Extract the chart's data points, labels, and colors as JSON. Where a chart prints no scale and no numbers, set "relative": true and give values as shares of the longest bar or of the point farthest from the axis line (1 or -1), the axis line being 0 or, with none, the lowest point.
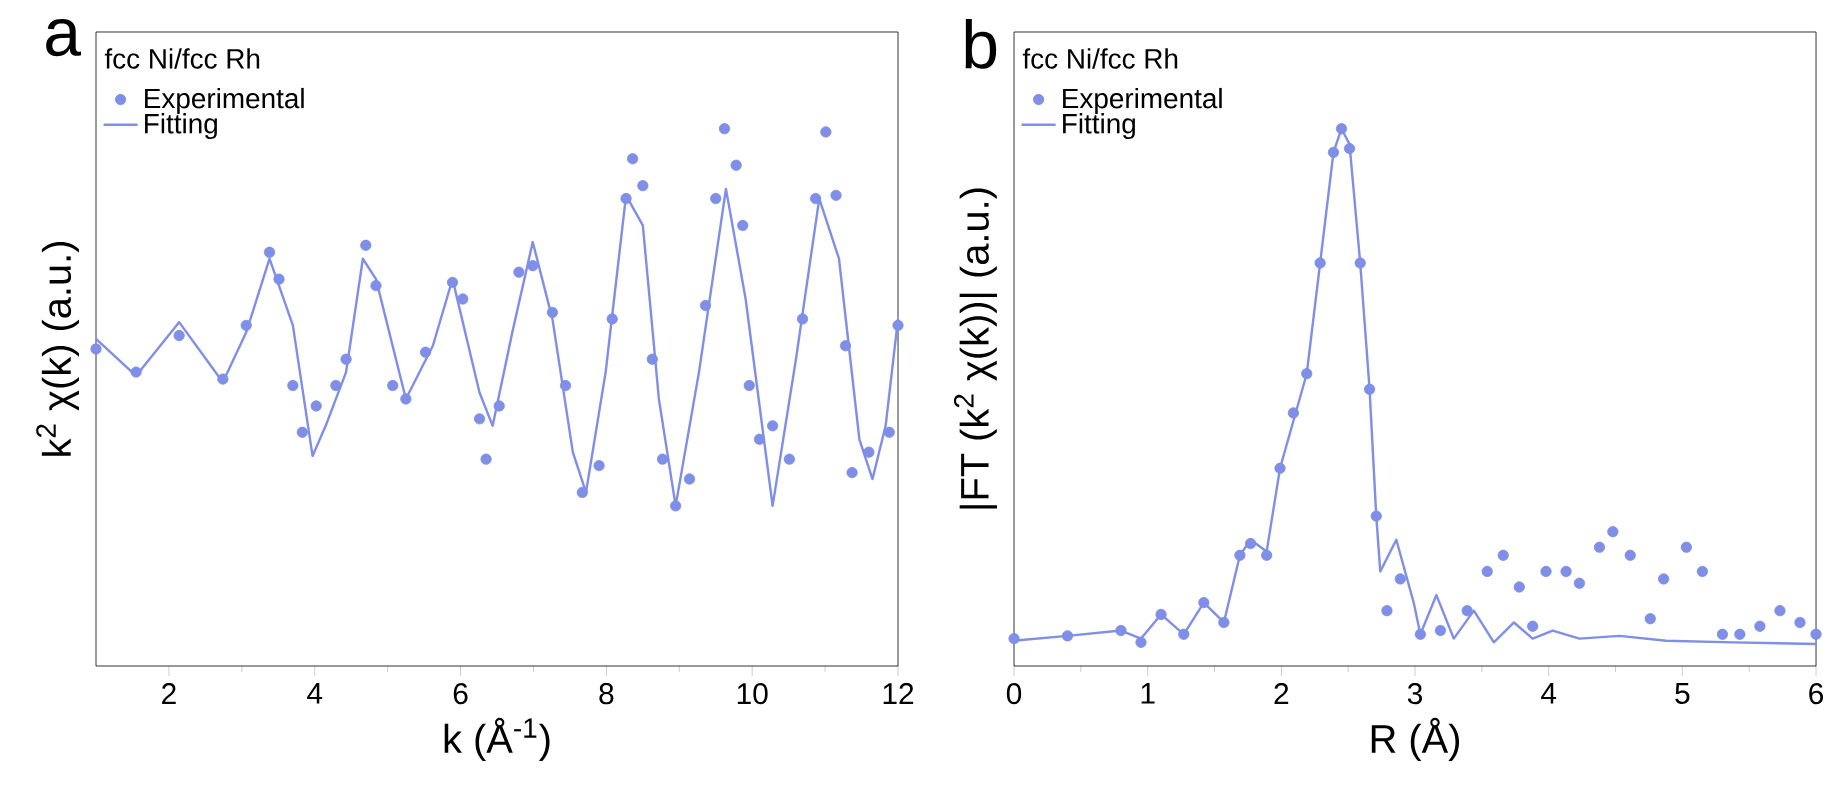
{
  "chart_data": [
    {
      "type": "scatter",
      "title": "a",
      "legend_title": "fcc Ni/fcc Rh",
      "xlabel": "k (Å$^{-1}$)",
      "ylabel": "k$^{2}$ χ(k) (a.u.)",
      "relative": true,
      "xlim": [
        1,
        12
      ],
      "xticks": [
        2,
        4,
        6,
        8,
        10,
        12
      ],
      "tick_labels": "x",
      "legend": "top left",
      "grid": false,
      "series": [
        {
          "name": "Experimental",
          "marker": "circle",
          "color": "#7f8ee6",
          "x": [
            1.0,
            1.55,
            2.14,
            2.74,
            3.06,
            3.38,
            3.51,
            3.7,
            3.83,
            4.02,
            4.29,
            4.43,
            4.7,
            4.84,
            5.07,
            5.25,
            5.52,
            5.89,
            6.03,
            6.26,
            6.35,
            6.53,
            6.8,
            6.99,
            7.26,
            7.44,
            7.67,
            7.9,
            8.08,
            8.27,
            8.36,
            8.5,
            8.63,
            8.77,
            8.95,
            9.14,
            9.36,
            9.5,
            9.62,
            9.78,
            9.87,
            9.96,
            10.1,
            10.28,
            10.51,
            10.69,
            10.87,
            11.01,
            11.15,
            11.28,
            11.37,
            11.6,
            11.88,
            12.0
          ],
          "values": [
            0.59,
            0.547,
            0.615,
            0.534,
            0.634,
            0.77,
            0.72,
            0.522,
            0.435,
            0.484,
            0.522,
            0.571,
            0.783,
            0.708,
            0.522,
            0.497,
            0.584,
            0.714,
            0.683,
            0.46,
            0.385,
            0.484,
            0.733,
            0.745,
            0.658,
            0.522,
            0.323,
            0.373,
            0.646,
            0.87,
            0.944,
            0.894,
            0.571,
            0.385,
            0.298,
            0.348,
            0.671,
            0.87,
            1.0,
            0.932,
            0.82,
            0.522,
            0.422,
            0.447,
            0.385,
            0.646,
            0.87,
            0.994,
            0.876,
            0.596,
            0.36,
            0.398,
            0.435,
            0.634
          ]
        },
        {
          "name": "Fitting",
          "type": "line",
          "marker": "none",
          "line_style": "solid",
          "color": "#7f8ee6",
          "x": [
            1.0,
            1.55,
            2.14,
            2.74,
            3.06,
            3.38,
            3.7,
            3.97,
            4.15,
            4.43,
            4.66,
            4.84,
            5.25,
            5.62,
            5.89,
            6.26,
            6.44,
            6.71,
            6.99,
            7.26,
            7.54,
            7.72,
            7.99,
            8.27,
            8.5,
            8.72,
            8.95,
            9.27,
            9.64,
            9.91,
            10.28,
            10.6,
            10.92,
            11.19,
            11.47,
            11.65,
            11.83,
            12.0
          ],
          "values": [
            0.609,
            0.54,
            0.64,
            0.528,
            0.621,
            0.758,
            0.634,
            0.391,
            0.447,
            0.547,
            0.758,
            0.72,
            0.497,
            0.596,
            0.72,
            0.509,
            0.447,
            0.621,
            0.789,
            0.646,
            0.398,
            0.323,
            0.547,
            0.876,
            0.82,
            0.497,
            0.298,
            0.547,
            0.888,
            0.683,
            0.298,
            0.571,
            0.87,
            0.758,
            0.422,
            0.348,
            0.447,
            0.646
          ]
        }
      ]
    },
    {
      "type": "scatter",
      "title": "b",
      "legend_title": "fcc Ni/fcc Rh",
      "xlabel": "R (Å)",
      "ylabel": "|FT (k$^{2}$ χ(k))| (a.u.)",
      "relative": true,
      "xlim": [
        0,
        6
      ],
      "xticks": [
        0,
        1,
        2,
        3,
        4,
        5,
        6
      ],
      "tick_labels": "x",
      "legend": "top left",
      "grid": false,
      "series": [
        {
          "name": "Experimental",
          "marker": "circle",
          "color": "#7f8ee6",
          "x": [
            0.0,
            0.4,
            0.8,
            0.95,
            1.1,
            1.27,
            1.42,
            1.57,
            1.69,
            1.77,
            1.89,
            1.99,
            2.09,
            2.19,
            2.29,
            2.39,
            2.45,
            2.51,
            2.59,
            2.66,
            2.71,
            2.79,
            2.89,
            3.04,
            3.19,
            3.39,
            3.54,
            3.66,
            3.78,
            3.88,
            3.98,
            4.13,
            4.23,
            4.38,
            4.48,
            4.61,
            4.76,
            4.86,
            5.03,
            5.15,
            5.3,
            5.43,
            5.58,
            5.73,
            5.88,
            6.0
          ],
          "values": [
            0.051,
            0.056,
            0.066,
            0.044,
            0.096,
            0.059,
            0.118,
            0.081,
            0.206,
            0.228,
            0.206,
            0.368,
            0.471,
            0.544,
            0.75,
            0.956,
            1.0,
            0.963,
            0.75,
            0.515,
            0.279,
            0.103,
            0.162,
            0.059,
            0.066,
            0.103,
            0.176,
            0.206,
            0.147,
            0.074,
            0.176,
            0.176,
            0.154,
            0.221,
            0.25,
            0.206,
            0.088,
            0.162,
            0.221,
            0.176,
            0.059,
            0.059,
            0.074,
            0.103,
            0.081,
            0.059
          ]
        },
        {
          "name": "Fitting",
          "type": "line",
          "marker": "none",
          "line_style": "solid",
          "color": "#7f8ee6",
          "x": [
            0.0,
            0.4,
            0.8,
            0.95,
            1.1,
            1.27,
            1.42,
            1.57,
            1.69,
            1.77,
            1.89,
            1.99,
            2.19,
            2.29,
            2.39,
            2.45,
            2.51,
            2.59,
            2.66,
            2.71,
            2.74,
            2.86,
            2.99,
            3.04,
            3.16,
            3.29,
            3.44,
            3.59,
            3.74,
            3.88,
            4.03,
            4.23,
            4.53,
            4.88,
            5.38,
            6.0
          ],
          "values": [
            0.047,
            0.056,
            0.066,
            0.051,
            0.096,
            0.059,
            0.118,
            0.081,
            0.206,
            0.235,
            0.213,
            0.368,
            0.544,
            0.75,
            0.956,
            1.0,
            0.971,
            0.75,
            0.515,
            0.279,
            0.176,
            0.235,
            0.118,
            0.059,
            0.132,
            0.051,
            0.103,
            0.044,
            0.081,
            0.051,
            0.066,
            0.051,
            0.056,
            0.047,
            0.044,
            0.041
          ]
        }
      ]
    }
  ]
}
